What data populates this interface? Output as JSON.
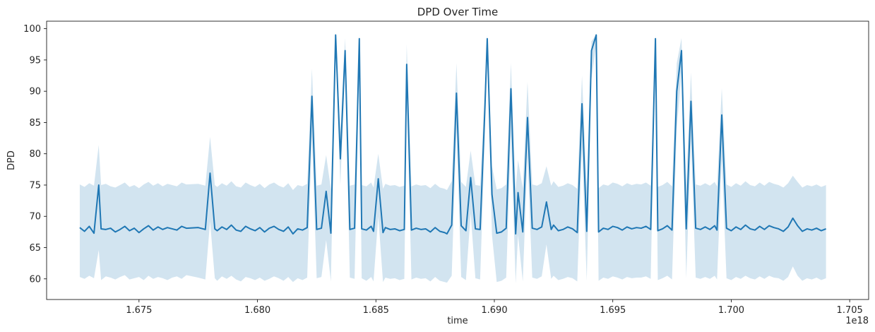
{
  "chart_data": {
    "type": "line",
    "title": "DPD Over Time",
    "xlabel": "time",
    "ylabel": "DPD",
    "x_offset_text": "1e18",
    "xlim": [
      1.6711,
      1.7058
    ],
    "ylim": [
      56.7,
      101.2
    ],
    "x_ticks": [
      {
        "value": 1.675,
        "label": "1.675"
      },
      {
        "value": 1.68,
        "label": "1.680"
      },
      {
        "value": 1.685,
        "label": "1.685"
      },
      {
        "value": 1.69,
        "label": "1.690"
      },
      {
        "value": 1.695,
        "label": "1.695"
      },
      {
        "value": 1.7,
        "label": "1.700"
      },
      {
        "value": 1.705,
        "label": "1.705"
      }
    ],
    "y_ticks": [
      {
        "value": 60,
        "label": "60"
      },
      {
        "value": 65,
        "label": "65"
      },
      {
        "value": 70,
        "label": "70"
      },
      {
        "value": 75,
        "label": "75"
      },
      {
        "value": 80,
        "label": "80"
      },
      {
        "value": 85,
        "label": "85"
      },
      {
        "value": 90,
        "label": "90"
      },
      {
        "value": 95,
        "label": "95"
      },
      {
        "value": 100,
        "label": "100"
      }
    ],
    "grid": false,
    "line_color": "#1f77b4",
    "band_color": "#1f77b4",
    "band_opacity": 0.2,
    "series": [
      {
        "x": [
          1.6725,
          1.6727,
          1.6729,
          1.6731,
          1.6733,
          1.6734,
          1.6736,
          1.6738,
          1.674,
          1.6742,
          1.6744,
          1.6746,
          1.6748,
          1.675,
          1.6752,
          1.6754,
          1.6756,
          1.6758,
          1.676,
          1.6762,
          1.6764,
          1.6766,
          1.6768,
          1.677,
          1.6775,
          1.6778,
          1.678,
          1.6782,
          1.6783,
          1.6785,
          1.6787,
          1.6789,
          1.6791,
          1.6793,
          1.6795,
          1.6797,
          1.6799,
          1.6801,
          1.6803,
          1.6805,
          1.6807,
          1.6809,
          1.6811,
          1.6813,
          1.6815,
          1.6817,
          1.6819,
          1.6821,
          1.6823,
          1.6825,
          1.6827,
          1.6829,
          1.6831,
          1.6833,
          1.6835,
          1.6837,
          1.6839,
          1.6841,
          1.6843,
          1.6844,
          1.6846,
          1.6848,
          1.6849,
          1.6851,
          1.6853,
          1.6854,
          1.6856,
          1.6858,
          1.686,
          1.6862,
          1.6863,
          1.6865,
          1.6867,
          1.6869,
          1.6871,
          1.6873,
          1.6875,
          1.6877,
          1.6879,
          1.688,
          1.6882,
          1.6884,
          1.6886,
          1.6888,
          1.689,
          1.6892,
          1.6894,
          1.6896,
          1.6897,
          1.6899,
          1.6901,
          1.6903,
          1.6905,
          1.6907,
          1.6909,
          1.691,
          1.6912,
          1.6914,
          1.6916,
          1.6918,
          1.692,
          1.6922,
          1.6924,
          1.6925,
          1.6927,
          1.6929,
          1.6931,
          1.6933,
          1.6935,
          1.6937,
          1.6939,
          1.6941,
          1.6943,
          1.6944,
          1.6946,
          1.6948,
          1.695,
          1.6952,
          1.6954,
          1.6956,
          1.6958,
          1.696,
          1.6962,
          1.6964,
          1.6966,
          1.6968,
          1.6969,
          1.6971,
          1.6973,
          1.6975,
          1.6977,
          1.6979,
          1.6981,
          1.6983,
          1.6985,
          1.6987,
          1.6989,
          1.6991,
          1.6993,
          1.6994,
          1.6996,
          1.6998,
          1.7,
          1.7002,
          1.7004,
          1.7006,
          1.7008,
          1.701,
          1.7012,
          1.7014,
          1.7016,
          1.7018,
          1.702,
          1.7022,
          1.7024,
          1.7026,
          1.7028,
          1.703,
          1.7032,
          1.7034,
          1.7036,
          1.7038,
          1.704
        ],
        "y": [
          68.2,
          67.6,
          68.4,
          67.3,
          75.0,
          68.0,
          67.9,
          68.1,
          67.5,
          67.9,
          68.4,
          67.7,
          68.1,
          67.4,
          68.0,
          68.5,
          67.8,
          68.3,
          67.9,
          68.2,
          68.0,
          67.8,
          68.4,
          68.1,
          68.2,
          67.9,
          76.9,
          68.0,
          67.7,
          68.3,
          67.9,
          68.6,
          67.8,
          67.6,
          68.4,
          68.0,
          67.7,
          68.2,
          67.5,
          68.1,
          68.4,
          67.9,
          67.6,
          68.3,
          67.2,
          68.0,
          67.8,
          68.2,
          89.2,
          67.9,
          68.1,
          74.0,
          67.3,
          99.0,
          79.2,
          96.5,
          67.9,
          68.1,
          98.4,
          68.0,
          67.8,
          68.4,
          67.6,
          76.0,
          67.4,
          68.2,
          67.9,
          68.0,
          67.7,
          67.9,
          94.3,
          67.8,
          68.1,
          67.9,
          68.0,
          67.5,
          68.2,
          67.6,
          67.4,
          67.2,
          68.6,
          89.7,
          68.5,
          67.7,
          76.2,
          68.0,
          67.9,
          87.2,
          98.4,
          73.5,
          67.3,
          67.5,
          68.1,
          90.4,
          67.2,
          73.8,
          67.5,
          85.8,
          68.1,
          67.9,
          68.3,
          72.3,
          67.9,
          68.6,
          67.7,
          67.9,
          68.3,
          68.0,
          67.4,
          88.0,
          67.6,
          96.5,
          99.0,
          67.5,
          68.1,
          67.9,
          68.4,
          68.2,
          67.8,
          68.3,
          68.0,
          68.2,
          68.1,
          68.4,
          67.9,
          98.4,
          67.7,
          68.0,
          68.5,
          67.8,
          90.0,
          96.5,
          68.0,
          88.4,
          68.1,
          67.9,
          68.3,
          67.9,
          68.5,
          67.8,
          86.2,
          68.1,
          67.7,
          68.3,
          67.9,
          68.6,
          68.0,
          67.8,
          68.4,
          67.9,
          68.5,
          68.2,
          68.0,
          67.6,
          68.3,
          69.7,
          68.5,
          67.6,
          68.0,
          67.8,
          68.1,
          67.7,
          68.0
        ],
        "lower": [
          60.3,
          60.0,
          60.5,
          60.1,
          64.6,
          59.8,
          60.4,
          60.2,
          59.9,
          60.3,
          60.6,
          59.9,
          60.1,
          60.3,
          59.8,
          60.5,
          60.0,
          60.3,
          60.1,
          59.8,
          60.2,
          60.4,
          60.0,
          60.6,
          60.2,
          59.9,
          69.2,
          60.1,
          59.7,
          60.4,
          60.0,
          60.5,
          59.9,
          59.6,
          60.3,
          60.1,
          59.8,
          60.2,
          59.7,
          60.0,
          60.4,
          60.1,
          59.7,
          60.3,
          59.5,
          60.1,
          59.8,
          60.2,
          82.8,
          60.1,
          60.3,
          66.2,
          59.6,
          97.0,
          75.0,
          93.5,
          60.2,
          60.0,
          94.0,
          60.1,
          59.7,
          60.3,
          59.6,
          70.0,
          59.5,
          60.2,
          60.0,
          60.1,
          59.8,
          60.0,
          90.0,
          59.9,
          60.2,
          60.0,
          60.1,
          59.6,
          60.3,
          59.7,
          59.5,
          59.4,
          60.5,
          84.0,
          60.3,
          59.8,
          70.5,
          60.1,
          59.9,
          83.0,
          97.0,
          67.0,
          59.5,
          59.7,
          60.2,
          83.0,
          59.3,
          67.0,
          59.6,
          79.5,
          60.2,
          60.0,
          60.4,
          65.5,
          60.0,
          60.5,
          59.8,
          60.0,
          60.3,
          60.1,
          59.6,
          81.0,
          59.7,
          92.0,
          97.5,
          59.7,
          60.2,
          60.0,
          60.4,
          60.2,
          59.9,
          60.3,
          60.1,
          60.2,
          60.2,
          60.4,
          60.0,
          96.5,
          59.8,
          60.1,
          60.5,
          59.9,
          84.0,
          93.0,
          60.1,
          82.0,
          60.2,
          60.0,
          60.3,
          60.0,
          60.5,
          59.9,
          79.0,
          60.1,
          59.8,
          60.3,
          60.0,
          60.5,
          60.1,
          59.9,
          60.4,
          60.0,
          60.5,
          60.2,
          60.1,
          59.7,
          60.3,
          62.0,
          60.5,
          59.7,
          60.1,
          59.9,
          60.2,
          59.8,
          60.1
        ],
        "upper": [
          75.1,
          74.7,
          75.3,
          74.9,
          81.4,
          75.0,
          75.2,
          74.8,
          74.6,
          75.0,
          75.4,
          74.7,
          75.0,
          74.5,
          75.1,
          75.5,
          74.9,
          75.3,
          74.8,
          75.2,
          75.0,
          74.8,
          75.4,
          75.1,
          75.2,
          74.9,
          82.7,
          75.0,
          74.7,
          75.3,
          74.9,
          75.6,
          74.8,
          74.6,
          75.4,
          75.0,
          74.7,
          75.2,
          74.5,
          75.1,
          75.4,
          74.9,
          74.6,
          75.3,
          74.2,
          75.0,
          74.8,
          75.2,
          93.6,
          74.9,
          75.1,
          79.8,
          74.3,
          99.0,
          83.5,
          98.5,
          74.9,
          75.1,
          99.0,
          75.0,
          74.8,
          75.4,
          74.6,
          80.0,
          74.4,
          75.2,
          74.9,
          75.0,
          74.7,
          74.9,
          97.5,
          74.8,
          75.1,
          74.9,
          75.0,
          74.5,
          75.2,
          74.6,
          74.4,
          74.2,
          75.6,
          94.5,
          75.5,
          74.7,
          80.5,
          75.0,
          74.9,
          90.5,
          99.0,
          78.0,
          74.3,
          74.5,
          75.1,
          94.5,
          74.2,
          79.0,
          74.5,
          91.5,
          75.1,
          74.9,
          75.3,
          78.0,
          74.9,
          75.6,
          74.7,
          74.9,
          75.3,
          75.0,
          74.4,
          92.5,
          74.6,
          98.0,
          99.0,
          74.5,
          75.1,
          74.9,
          75.4,
          75.2,
          74.8,
          75.3,
          75.0,
          75.2,
          75.1,
          75.4,
          74.9,
          99.0,
          74.7,
          75.0,
          75.5,
          74.8,
          94.5,
          98.5,
          75.0,
          93.0,
          75.1,
          74.9,
          75.3,
          74.9,
          75.5,
          74.8,
          90.5,
          75.1,
          74.7,
          75.3,
          74.9,
          75.6,
          75.0,
          74.8,
          75.4,
          74.9,
          75.5,
          75.2,
          75.0,
          74.6,
          75.3,
          76.5,
          75.5,
          74.6,
          75.0,
          74.8,
          75.1,
          74.7,
          75.0
        ]
      }
    ]
  }
}
